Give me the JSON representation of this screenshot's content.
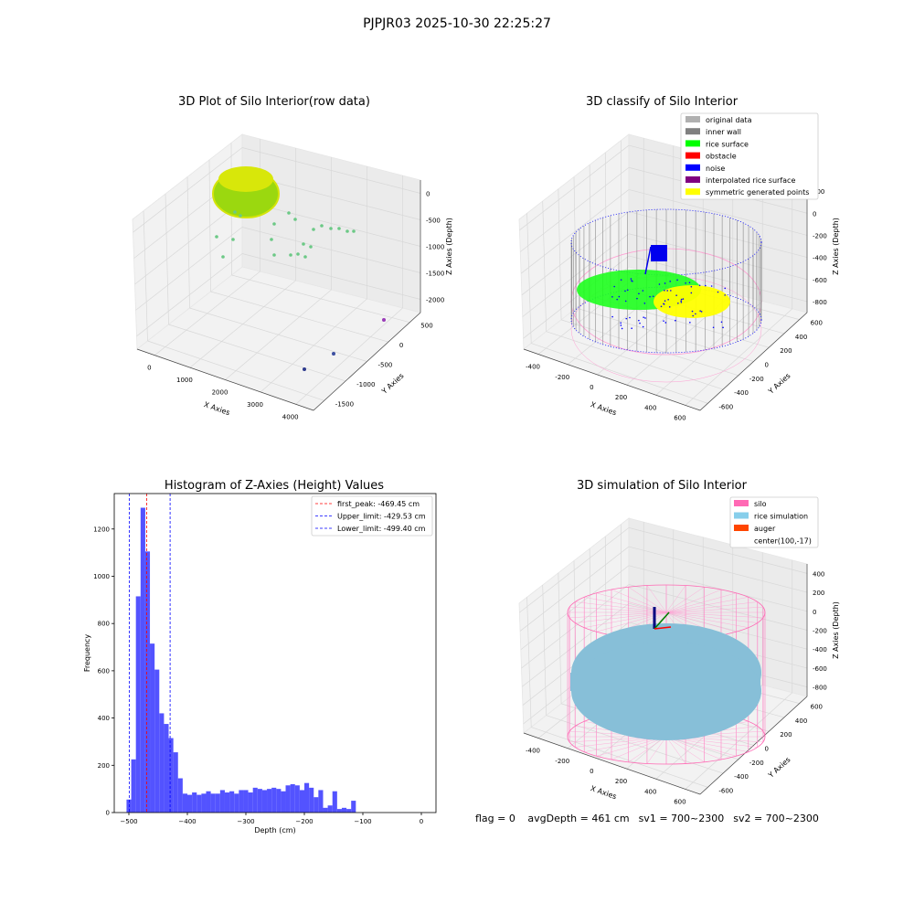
{
  "figure": {
    "suptitle": "PJPJR03 2025-10-30 22:25:27"
  },
  "panels": {
    "raw": {
      "title": "3D Plot of Silo Interior(row data)",
      "xlabel": "X Axies",
      "ylabel": "Y Axies",
      "zlabel": "Z Axies (Depth)",
      "xticks": [
        "0",
        "1000",
        "2000",
        "3000",
        "4000"
      ],
      "yticks": [
        "500",
        "0",
        "-500",
        "-1000",
        "-1500"
      ],
      "zticks": [
        "0",
        "-500",
        "-1000",
        "-1500",
        "-2000"
      ]
    },
    "classify": {
      "title": "3D classify of Silo Interior",
      "xlabel": "X Axies",
      "ylabel": "Y Axies",
      "zlabel": "Z Axies (Depth)",
      "xticks": [
        "-400",
        "-200",
        "0",
        "200",
        "400",
        "600"
      ],
      "yticks": [
        "600",
        "400",
        "200",
        "0",
        "-200",
        "-400",
        "-600"
      ],
      "zticks": [
        "200",
        "0",
        "-200",
        "-400",
        "-600",
        "-800"
      ],
      "legend": [
        {
          "label": "original data",
          "color": "#b0b0b0"
        },
        {
          "label": "inner wall",
          "color": "#808080"
        },
        {
          "label": "rice surface",
          "color": "#00ff00"
        },
        {
          "label": "obstacle",
          "color": "#ff0000"
        },
        {
          "label": "noise",
          "color": "#0000ff"
        },
        {
          "label": "interpolated rice surface",
          "color": "#800080"
        },
        {
          "label": "symmetric generated points",
          "color": "#ffff00"
        }
      ]
    },
    "simulation": {
      "title": "3D simulation of Silo Interior",
      "xlabel": "X Axies",
      "ylabel": "Y Axies",
      "zlabel": "Z Axies (Depth)",
      "xticks": [
        "-400",
        "-200",
        "0",
        "200",
        "400",
        "600"
      ],
      "yticks": [
        "600",
        "400",
        "200",
        "0",
        "-200",
        "-400",
        "-600"
      ],
      "zticks": [
        "400",
        "200",
        "0",
        "-200",
        "-400",
        "-600",
        "-800"
      ],
      "legend": [
        {
          "label": "silo",
          "color": "#ff69b4"
        },
        {
          "label": "rice simulation",
          "color": "#87ceeb"
        },
        {
          "label": "auger",
          "color": "#ff4500"
        },
        {
          "label": "center(100,-17)",
          "color": ""
        }
      ]
    }
  },
  "chart_data": {
    "type": "bar",
    "title": "Histogram of Z-Axies (Height) Values",
    "xlabel": "Depth (cm)",
    "ylabel": "Frequency",
    "xlim": [
      -525,
      25
    ],
    "ylim": [
      0,
      1350
    ],
    "xticks": [
      -500,
      -400,
      -300,
      -200,
      -100,
      0
    ],
    "yticks": [
      0,
      200,
      400,
      600,
      800,
      1000,
      1200
    ],
    "bar_color": "#4444ff",
    "bin_start": -504,
    "bin_width": 8,
    "values": [
      55,
      225,
      915,
      1290,
      1105,
      715,
      605,
      420,
      375,
      315,
      255,
      145,
      80,
      75,
      85,
      75,
      80,
      90,
      80,
      80,
      95,
      85,
      90,
      80,
      95,
      95,
      85,
      105,
      100,
      95,
      100,
      105,
      100,
      90,
      115,
      120,
      115,
      95,
      125,
      105,
      65,
      95,
      20,
      30,
      90,
      15,
      20,
      15,
      50
    ],
    "lines": [
      {
        "label": "first_peak: -469.45 cm",
        "x": -469.45,
        "color": "#ff0000"
      },
      {
        "label": "Upper_limit: -429.53 cm",
        "x": -429.53,
        "color": "#0000ff"
      },
      {
        "label": "Lower_limit: -499.40 cm",
        "x": -499.4,
        "color": "#0000ff"
      }
    ],
    "legend_position": "top-right"
  },
  "footer": {
    "flag": "flag = 0",
    "avg_depth": "avgDepth = 461 cm",
    "sv1": "sv1 = 700~2300",
    "sv2": "sv2 = 700~2300"
  }
}
